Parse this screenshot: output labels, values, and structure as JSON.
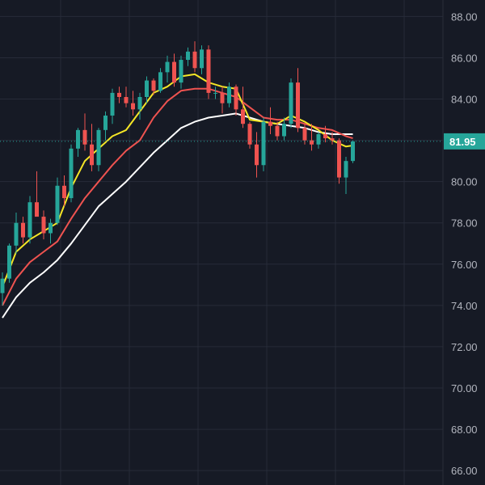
{
  "colors": {
    "background": "#161a25",
    "grid": "#262b38",
    "axis_text": "#b2b5be",
    "up": "#26a69a",
    "down": "#ef5350",
    "ma_fast": "#f5e626",
    "ma_mid": "#ef5350",
    "ma_slow": "#ffffff",
    "last_price": "#26a69a"
  },
  "chart_data": {
    "type": "candlestick",
    "ylim": [
      65.3,
      88.8
    ],
    "grid": true,
    "y_axis_position": "right",
    "y_ticks": [
      "66.00",
      "68.00",
      "70.00",
      "72.00",
      "74.00",
      "76.00",
      "78.00",
      "80.00",
      "82.00",
      "84.00",
      "86.00",
      "88.00"
    ],
    "last_price_label": "81.95",
    "last_price": 81.95,
    "candles": [
      [
        74.6,
        75.6,
        74.0,
        75.3
      ],
      [
        75.3,
        77.0,
        75.1,
        76.9
      ],
      [
        76.9,
        78.5,
        76.5,
        78.0
      ],
      [
        78.0,
        78.3,
        77.0,
        77.3
      ],
      [
        77.3,
        79.3,
        77.0,
        79.0
      ],
      [
        79.0,
        80.5,
        78.5,
        78.3
      ],
      [
        78.3,
        78.6,
        77.2,
        77.5
      ],
      [
        77.5,
        78.2,
        77.0,
        78.0
      ],
      [
        78.0,
        80.2,
        77.9,
        79.8
      ],
      [
        79.8,
        80.3,
        78.8,
        79.2
      ],
      [
        79.2,
        81.8,
        79.0,
        81.6
      ],
      [
        81.6,
        82.6,
        81.2,
        82.5
      ],
      [
        82.5,
        83.3,
        81.5,
        81.8
      ],
      [
        81.8,
        82.8,
        80.5,
        80.8
      ],
      [
        80.8,
        82.6,
        80.5,
        82.5
      ],
      [
        82.5,
        83.4,
        82.0,
        83.2
      ],
      [
        83.2,
        84.5,
        82.8,
        84.3
      ],
      [
        84.3,
        84.6,
        83.8,
        84.1
      ],
      [
        84.1,
        84.6,
        83.6,
        83.8
      ],
      [
        83.8,
        84.4,
        83.2,
        83.5
      ],
      [
        83.5,
        84.3,
        83.0,
        84.1
      ],
      [
        84.1,
        85.1,
        83.8,
        84.9
      ],
      [
        84.9,
        85.0,
        84.2,
        84.4
      ],
      [
        84.4,
        85.5,
        84.3,
        85.3
      ],
      [
        85.3,
        86.1,
        84.8,
        85.8
      ],
      [
        85.8,
        86.2,
        84.6,
        84.8
      ],
      [
        84.8,
        86.1,
        84.5,
        85.9
      ],
      [
        85.9,
        86.5,
        85.6,
        86.3
      ],
      [
        86.3,
        86.8,
        85.3,
        85.5
      ],
      [
        85.5,
        86.6,
        85.2,
        86.4
      ],
      [
        86.4,
        86.6,
        84.0,
        84.3
      ],
      [
        84.3,
        84.6,
        84.0,
        84.3
      ],
      [
        84.3,
        84.6,
        83.3,
        83.8
      ],
      [
        83.8,
        84.8,
        83.6,
        84.6
      ],
      [
        84.6,
        84.7,
        83.2,
        83.5
      ],
      [
        83.5,
        84.6,
        82.6,
        82.8
      ],
      [
        82.8,
        82.9,
        81.6,
        81.8
      ],
      [
        81.8,
        82.4,
        80.2,
        80.8
      ],
      [
        80.8,
        83.1,
        80.5,
        82.9
      ],
      [
        82.9,
        83.6,
        82.3,
        82.7
      ],
      [
        82.7,
        82.9,
        82.0,
        82.2
      ],
      [
        82.2,
        83.1,
        82.0,
        82.8
      ],
      [
        82.8,
        85.0,
        82.6,
        84.8
      ],
      [
        84.8,
        85.5,
        82.4,
        82.6
      ],
      [
        82.6,
        82.8,
        81.8,
        82.0
      ],
      [
        82.0,
        82.8,
        81.5,
        81.8
      ],
      [
        81.8,
        82.4,
        81.6,
        82.3
      ],
      [
        82.3,
        82.7,
        81.9,
        82.1
      ],
      [
        82.1,
        82.4,
        81.8,
        82.0
      ],
      [
        82.0,
        82.1,
        79.9,
        80.2
      ],
      [
        80.2,
        81.2,
        79.4,
        81.0
      ],
      [
        81.0,
        82.0,
        80.9,
        81.95
      ]
    ],
    "ma_fast": [
      [
        0,
        74.9
      ],
      [
        2,
        76.6
      ],
      [
        4,
        77.2
      ],
      [
        6,
        77.6
      ],
      [
        8,
        78.0
      ],
      [
        10,
        79.7
      ],
      [
        12,
        81.0
      ],
      [
        14,
        81.6
      ],
      [
        16,
        82.2
      ],
      [
        18,
        82.5
      ],
      [
        20,
        83.4
      ],
      [
        22,
        84.3
      ],
      [
        24,
        84.6
      ],
      [
        26,
        85.1
      ],
      [
        28,
        85.2
      ],
      [
        30,
        84.8
      ],
      [
        32,
        84.6
      ],
      [
        34,
        84.5
      ],
      [
        36,
        83.0
      ],
      [
        38,
        82.9
      ],
      [
        40,
        82.8
      ],
      [
        42,
        83.2
      ],
      [
        44,
        82.9
      ],
      [
        46,
        82.5
      ],
      [
        48,
        82.0
      ],
      [
        50,
        81.7
      ],
      [
        51,
        81.75
      ]
    ],
    "ma_mid": [
      [
        0,
        74.0
      ],
      [
        2,
        75.3
      ],
      [
        4,
        76.1
      ],
      [
        6,
        76.6
      ],
      [
        8,
        77.1
      ],
      [
        10,
        78.2
      ],
      [
        12,
        79.2
      ],
      [
        14,
        80.0
      ],
      [
        16,
        80.8
      ],
      [
        18,
        81.5
      ],
      [
        20,
        82.0
      ],
      [
        22,
        83.1
      ],
      [
        24,
        83.9
      ],
      [
        26,
        84.4
      ],
      [
        28,
        84.5
      ],
      [
        30,
        84.5
      ],
      [
        32,
        84.3
      ],
      [
        34,
        84.1
      ],
      [
        36,
        83.6
      ],
      [
        38,
        83.1
      ],
      [
        40,
        83.0
      ],
      [
        42,
        83.0
      ],
      [
        44,
        82.8
      ],
      [
        46,
        82.6
      ],
      [
        48,
        82.5
      ],
      [
        50,
        82.2
      ],
      [
        51,
        82.1
      ]
    ],
    "ma_slow": [
      [
        0,
        73.4
      ],
      [
        2,
        74.4
      ],
      [
        4,
        75.1
      ],
      [
        6,
        75.6
      ],
      [
        8,
        76.2
      ],
      [
        10,
        77.0
      ],
      [
        12,
        77.9
      ],
      [
        14,
        78.8
      ],
      [
        16,
        79.4
      ],
      [
        18,
        80.0
      ],
      [
        20,
        80.7
      ],
      [
        22,
        81.4
      ],
      [
        24,
        82.0
      ],
      [
        26,
        82.6
      ],
      [
        28,
        82.9
      ],
      [
        30,
        83.1
      ],
      [
        32,
        83.2
      ],
      [
        34,
        83.3
      ],
      [
        36,
        83.1
      ],
      [
        38,
        82.9
      ],
      [
        40,
        82.8
      ],
      [
        42,
        82.7
      ],
      [
        44,
        82.6
      ],
      [
        46,
        82.4
      ],
      [
        48,
        82.3
      ],
      [
        50,
        82.3
      ],
      [
        51,
        82.3
      ]
    ]
  }
}
